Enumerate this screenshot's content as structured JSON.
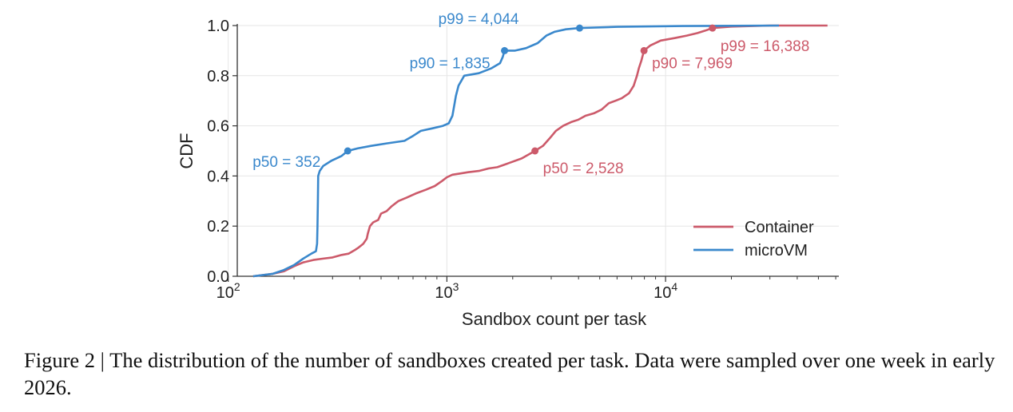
{
  "chart_data": {
    "type": "line",
    "xlabel": "Sandbox count per task",
    "ylabel": "CDF",
    "xscale": "log",
    "xlim": [
      110,
      62000
    ],
    "ylim": [
      0,
      1.0
    ],
    "x_ticks": [
      {
        "value": 100,
        "base": "10",
        "exp": "2"
      },
      {
        "value": 1000,
        "base": "10",
        "exp": "3"
      },
      {
        "value": 10000,
        "base": "10",
        "exp": "4"
      }
    ],
    "y_ticks": [
      {
        "value": 0.0,
        "label": "0.0"
      },
      {
        "value": 0.2,
        "label": "0.2"
      },
      {
        "value": 0.4,
        "label": "0.4"
      },
      {
        "value": 0.6,
        "label": "0.6"
      },
      {
        "value": 0.8,
        "label": "0.8"
      },
      {
        "value": 1.0,
        "label": "1.0"
      }
    ],
    "grid": true,
    "legend_position": "bottom-right",
    "series": [
      {
        "name": "Container",
        "color": "#cc5a6a",
        "points": [
          [
            130,
            0.0
          ],
          [
            160,
            0.01
          ],
          [
            180,
            0.02
          ],
          [
            200,
            0.04
          ],
          [
            220,
            0.055
          ],
          [
            245,
            0.065
          ],
          [
            270,
            0.07
          ],
          [
            300,
            0.075
          ],
          [
            330,
            0.085
          ],
          [
            355,
            0.09
          ],
          [
            380,
            0.105
          ],
          [
            395,
            0.115
          ],
          [
            415,
            0.13
          ],
          [
            430,
            0.15
          ],
          [
            435,
            0.17
          ],
          [
            445,
            0.2
          ],
          [
            460,
            0.215
          ],
          [
            485,
            0.225
          ],
          [
            500,
            0.25
          ],
          [
            530,
            0.26
          ],
          [
            560,
            0.28
          ],
          [
            600,
            0.3
          ],
          [
            660,
            0.315
          ],
          [
            720,
            0.33
          ],
          [
            800,
            0.345
          ],
          [
            880,
            0.36
          ],
          [
            950,
            0.38
          ],
          [
            1000,
            0.395
          ],
          [
            1060,
            0.405
          ],
          [
            1150,
            0.41
          ],
          [
            1250,
            0.415
          ],
          [
            1400,
            0.42
          ],
          [
            1550,
            0.43
          ],
          [
            1700,
            0.435
          ],
          [
            1900,
            0.45
          ],
          [
            2200,
            0.47
          ],
          [
            2528,
            0.5
          ],
          [
            2750,
            0.52
          ],
          [
            2950,
            0.55
          ],
          [
            3150,
            0.58
          ],
          [
            3400,
            0.6
          ],
          [
            3700,
            0.615
          ],
          [
            4000,
            0.625
          ],
          [
            4300,
            0.64
          ],
          [
            4700,
            0.65
          ],
          [
            5100,
            0.665
          ],
          [
            5500,
            0.69
          ],
          [
            5900,
            0.7
          ],
          [
            6300,
            0.71
          ],
          [
            6800,
            0.73
          ],
          [
            7150,
            0.76
          ],
          [
            7400,
            0.8
          ],
          [
            7550,
            0.83
          ],
          [
            7750,
            0.86
          ],
          [
            7969,
            0.9
          ],
          [
            8500,
            0.92
          ],
          [
            9500,
            0.94
          ],
          [
            11000,
            0.95
          ],
          [
            12500,
            0.96
          ],
          [
            14000,
            0.97
          ],
          [
            15200,
            0.98
          ],
          [
            16388,
            0.99
          ],
          [
            20000,
            0.996
          ],
          [
            30000,
            1.0
          ],
          [
            55000,
            1.0
          ]
        ],
        "markers": [
          {
            "p": "p50",
            "x": 2528,
            "y": 0.5,
            "label": "p50 = 2,528"
          },
          {
            "p": "p90",
            "x": 7969,
            "y": 0.9,
            "label": "p90 = 7,969"
          },
          {
            "p": "p99",
            "x": 16388,
            "y": 0.99,
            "label": "p99 = 16,388"
          }
        ]
      },
      {
        "name": "microVM",
        "color": "#3a88cc",
        "points": [
          [
            130,
            0.0
          ],
          [
            160,
            0.01
          ],
          [
            180,
            0.025
          ],
          [
            200,
            0.045
          ],
          [
            220,
            0.07
          ],
          [
            240,
            0.09
          ],
          [
            252,
            0.1
          ],
          [
            255,
            0.13
          ],
          [
            256,
            0.2
          ],
          [
            257,
            0.3
          ],
          [
            258,
            0.4
          ],
          [
            262,
            0.42
          ],
          [
            272,
            0.44
          ],
          [
            295,
            0.46
          ],
          [
            330,
            0.48
          ],
          [
            352,
            0.5
          ],
          [
            390,
            0.51
          ],
          [
            450,
            0.52
          ],
          [
            530,
            0.53
          ],
          [
            640,
            0.54
          ],
          [
            700,
            0.56
          ],
          [
            760,
            0.58
          ],
          [
            860,
            0.59
          ],
          [
            960,
            0.6
          ],
          [
            1020,
            0.61
          ],
          [
            1060,
            0.64
          ],
          [
            1080,
            0.68
          ],
          [
            1100,
            0.72
          ],
          [
            1130,
            0.76
          ],
          [
            1200,
            0.8
          ],
          [
            1400,
            0.81
          ],
          [
            1600,
            0.83
          ],
          [
            1750,
            0.85
          ],
          [
            1800,
            0.875
          ],
          [
            1835,
            0.9
          ],
          [
            2050,
            0.9
          ],
          [
            2300,
            0.91
          ],
          [
            2600,
            0.93
          ],
          [
            2850,
            0.96
          ],
          [
            3100,
            0.975
          ],
          [
            3500,
            0.985
          ],
          [
            4044,
            0.99
          ],
          [
            6000,
            0.995
          ],
          [
            12000,
            0.998
          ],
          [
            33000,
            1.0
          ]
        ],
        "markers": [
          {
            "p": "p50",
            "x": 352,
            "y": 0.5,
            "label": "p50 = 352"
          },
          {
            "p": "p90",
            "x": 1835,
            "y": 0.9,
            "label": "p90 = 1,835"
          },
          {
            "p": "p99",
            "x": 4044,
            "y": 0.99,
            "label": "p99 = 4,044"
          }
        ]
      }
    ]
  },
  "caption": "Figure 2 | The distribution of the number of sandboxes created per task. Data were sampled over one week in early 2026."
}
